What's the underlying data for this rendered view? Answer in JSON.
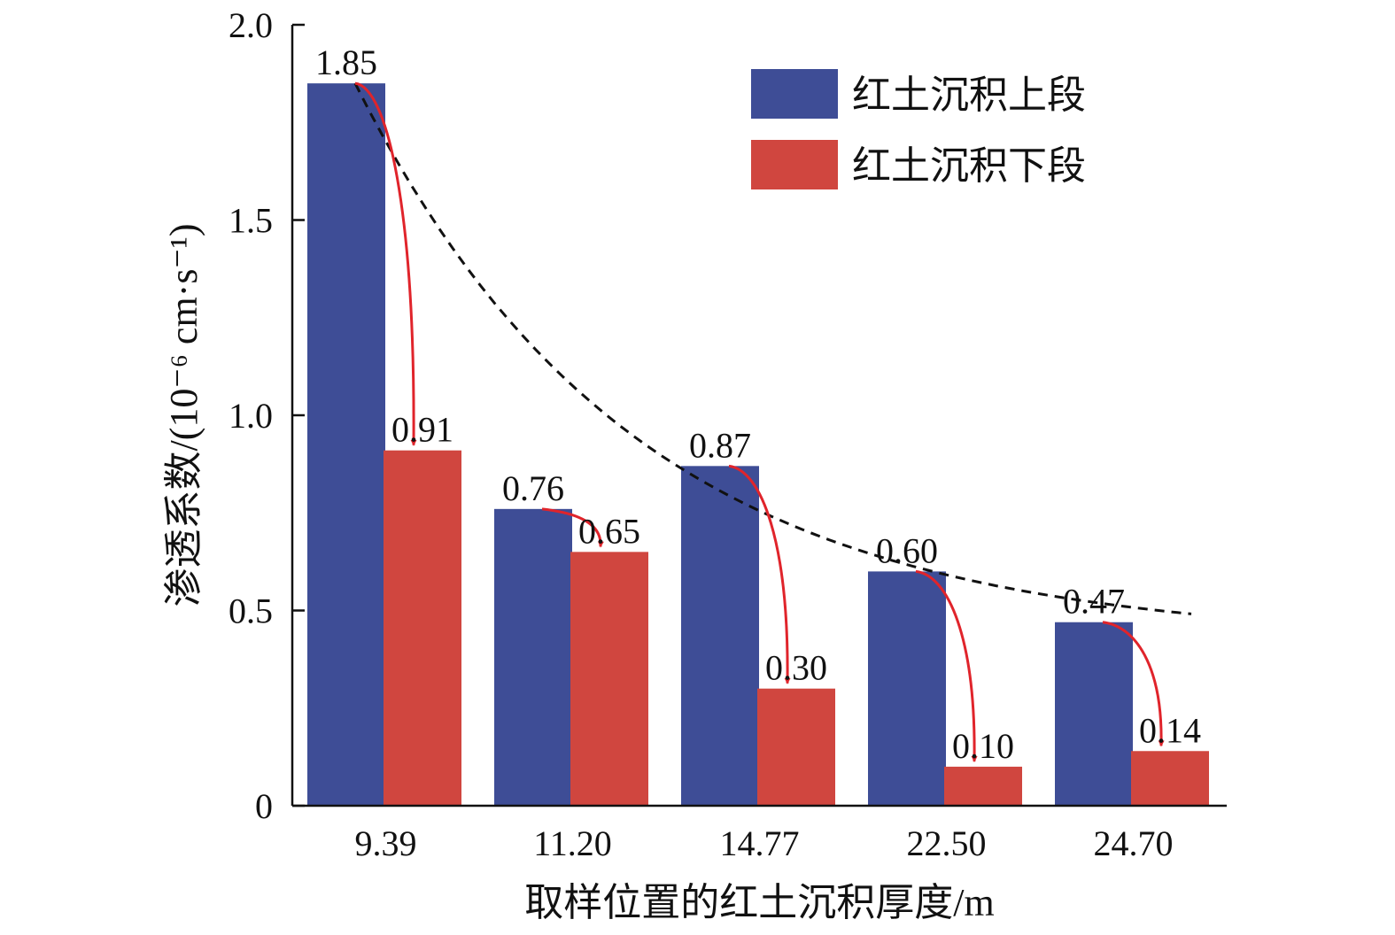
{
  "chart_data": {
    "type": "bar",
    "categories": [
      "9.39",
      "11.20",
      "14.77",
      "22.50",
      "24.70"
    ],
    "series": [
      {
        "name": "红土沉积上段",
        "values": [
          1.85,
          0.76,
          0.87,
          0.6,
          0.47
        ],
        "color": "#3e4d96"
      },
      {
        "name": "红土沉积下段",
        "values": [
          0.91,
          0.65,
          0.3,
          0.1,
          0.14
        ],
        "color": "#d0463f"
      }
    ],
    "xlabel": "取样位置的红土沉积厚度/m",
    "ylabel": "渗透系数/(10⁻⁶ cm·s⁻¹)",
    "ylim": [
      0,
      2.0
    ],
    "yticks": [
      0,
      0.5,
      1.0,
      1.5,
      2.0
    ],
    "ytick_labels": [
      "0",
      "0.5",
      "1.0",
      "1.5",
      "2.0"
    ],
    "data_labels": [
      [
        "1.85",
        "0.76",
        "0.87",
        "0.60",
        "0.47"
      ],
      [
        "0.91",
        "0.65",
        "0.30",
        "0.10",
        "0.14"
      ]
    ],
    "trend_line": {
      "style": "dashed",
      "color": "#111111"
    },
    "arrows": {
      "from": "红土沉积上段",
      "to": "红土沉积下段",
      "color": "#e0242b"
    },
    "grid": false,
    "legend_position": "top-right"
  }
}
